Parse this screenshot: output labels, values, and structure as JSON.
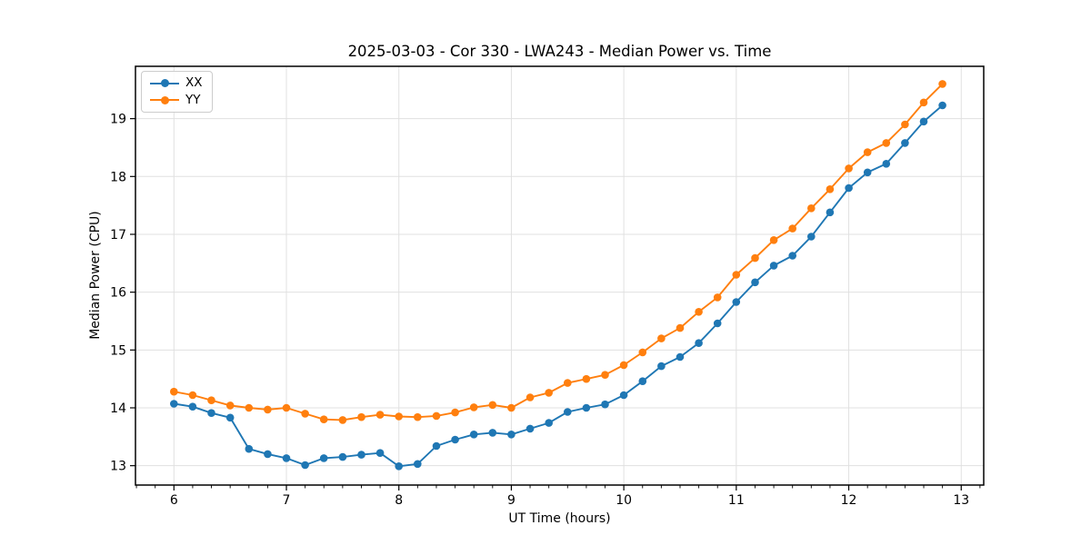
{
  "chart_data": {
    "type": "line",
    "title": "2025-03-03 - Cor 330 - LWA243 - Median Power vs. Time",
    "xlabel": "UT Time (hours)",
    "ylabel": "Median Power (CPU)",
    "xlim": [
      5.658,
      13.2
    ],
    "ylim": [
      12.665,
      19.905
    ],
    "x_ticks": [
      6,
      7,
      8,
      9,
      10,
      11,
      12,
      13
    ],
    "y_ticks": [
      13,
      14,
      15,
      16,
      17,
      18,
      19
    ],
    "x_minor_step": 0.166667,
    "grid": true,
    "grid_color": "#e0e0e0",
    "spine_color": "#000000",
    "background": "#ffffff",
    "legend_position": "upper-left",
    "marker": "o",
    "x": [
      6.0,
      6.1667,
      6.3333,
      6.5,
      6.6667,
      6.8333,
      7.0,
      7.1667,
      7.3333,
      7.5,
      7.6667,
      7.8333,
      8.0,
      8.1667,
      8.3333,
      8.5,
      8.6667,
      8.8333,
      9.0,
      9.1667,
      9.3333,
      9.5,
      9.6667,
      9.8333,
      10.0,
      10.1667,
      10.3333,
      10.5,
      10.6667,
      10.8333,
      11.0,
      11.1667,
      11.3333,
      11.5,
      11.6667,
      11.8333,
      12.0,
      12.1667,
      12.3333,
      12.5,
      12.6667,
      12.8333
    ],
    "series": [
      {
        "name": "XX",
        "color": "#1f77b4",
        "values": [
          14.07,
          14.02,
          13.91,
          13.83,
          13.29,
          13.2,
          13.13,
          13.01,
          13.13,
          13.15,
          13.19,
          13.22,
          12.99,
          13.03,
          13.34,
          13.45,
          13.54,
          13.57,
          13.54,
          13.64,
          13.74,
          13.93,
          14.0,
          14.06,
          14.22,
          14.46,
          14.72,
          14.88,
          15.12,
          15.46,
          15.83,
          16.17,
          16.46,
          16.63,
          16.96,
          17.38,
          17.8,
          18.07,
          18.22,
          18.58,
          18.95,
          19.23
        ]
      },
      {
        "name": "YY",
        "color": "#ff7f0e",
        "values": [
          14.28,
          14.22,
          14.13,
          14.04,
          14.0,
          13.97,
          14.0,
          13.9,
          13.8,
          13.79,
          13.84,
          13.88,
          13.85,
          13.84,
          13.86,
          13.92,
          14.01,
          14.05,
          14.0,
          14.18,
          14.26,
          14.43,
          14.5,
          14.57,
          14.74,
          14.96,
          15.2,
          15.38,
          15.66,
          15.91,
          16.3,
          16.59,
          16.9,
          17.1,
          17.45,
          17.78,
          18.14,
          18.42,
          18.58,
          18.9,
          19.28,
          19.6
        ]
      }
    ]
  }
}
